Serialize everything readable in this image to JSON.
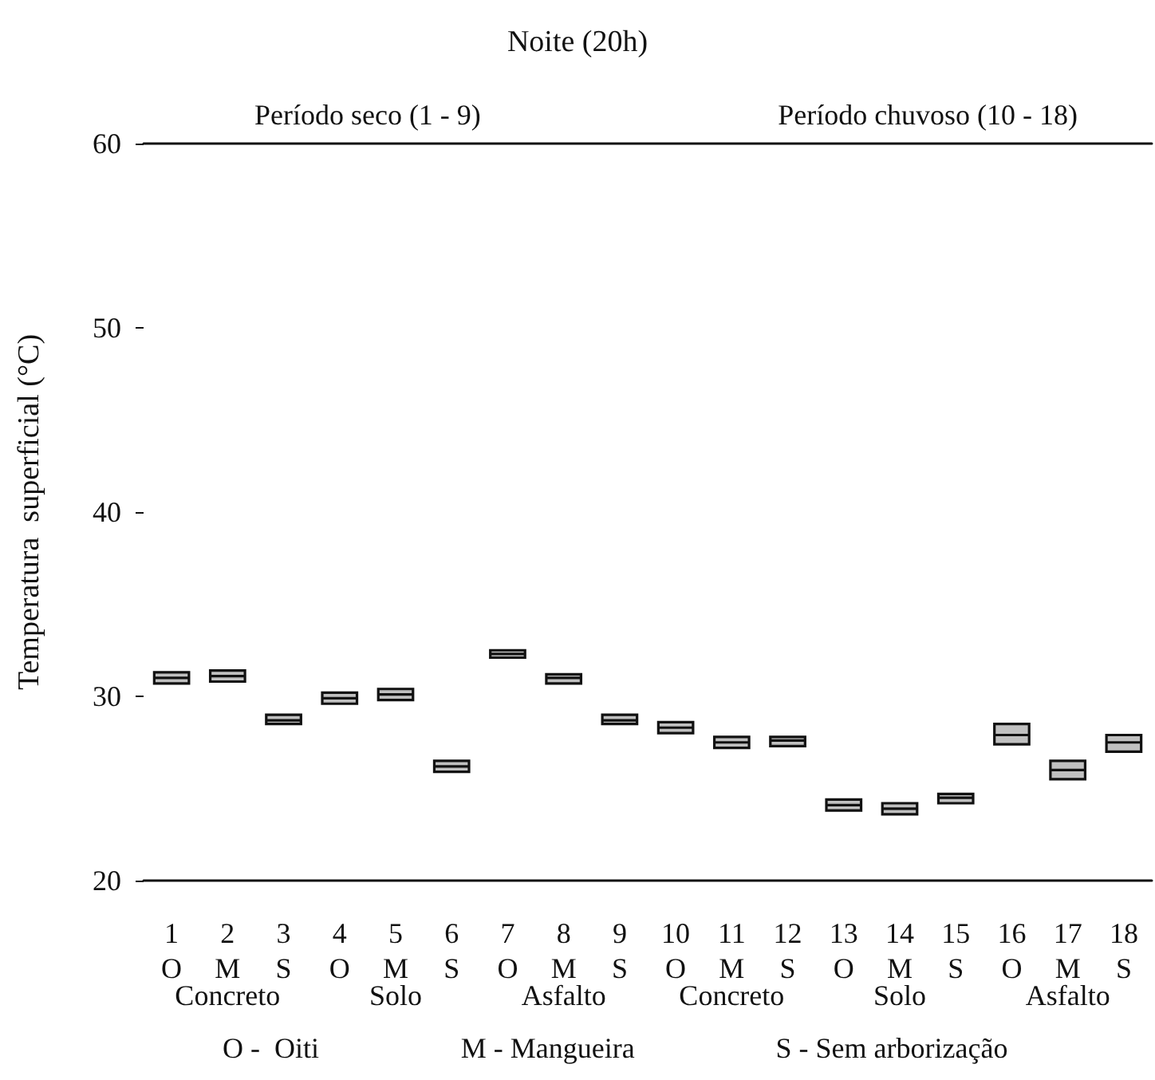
{
  "chart_data": {
    "type": "box",
    "title": "Noite (20h)",
    "ylabel": "Temperatura  superficial (°C)",
    "categories": [
      "1\nO",
      "2\nM",
      "3\nS",
      "4\nO",
      "5\nM",
      "6\nS",
      "7\nO",
      "8\nM",
      "9\nS",
      "10\nO",
      "11\nM",
      "12\nS",
      "13\nO",
      "14\nM",
      "15\nS",
      "16\nO",
      "17\nM",
      "18\nS"
    ],
    "boxes": [
      {
        "low": 30.7,
        "q1": 30.7,
        "median": 31.0,
        "q3": 31.3,
        "high": 31.3
      },
      {
        "low": 30.8,
        "q1": 30.8,
        "median": 31.1,
        "q3": 31.4,
        "high": 31.4
      },
      {
        "low": 28.5,
        "q1": 28.5,
        "median": 28.7,
        "q3": 29.0,
        "high": 29.0
      },
      {
        "low": 29.6,
        "q1": 29.6,
        "median": 29.9,
        "q3": 30.2,
        "high": 30.2
      },
      {
        "low": 29.8,
        "q1": 29.8,
        "median": 30.1,
        "q3": 30.4,
        "high": 30.4
      },
      {
        "low": 25.9,
        "q1": 25.9,
        "median": 26.2,
        "q3": 26.5,
        "high": 26.5
      },
      {
        "low": 32.1,
        "q1": 32.1,
        "median": 32.3,
        "q3": 32.5,
        "high": 32.5
      },
      {
        "low": 30.7,
        "q1": 30.7,
        "median": 31.0,
        "q3": 31.2,
        "high": 31.2
      },
      {
        "low": 28.5,
        "q1": 28.5,
        "median": 28.7,
        "q3": 29.0,
        "high": 29.0
      },
      {
        "low": 28.0,
        "q1": 28.0,
        "median": 28.3,
        "q3": 28.6,
        "high": 28.6
      },
      {
        "low": 27.2,
        "q1": 27.2,
        "median": 27.5,
        "q3": 27.8,
        "high": 27.8
      },
      {
        "low": 27.3,
        "q1": 27.3,
        "median": 27.6,
        "q3": 27.8,
        "high": 27.8
      },
      {
        "low": 23.8,
        "q1": 23.8,
        "median": 24.1,
        "q3": 24.4,
        "high": 24.4
      },
      {
        "low": 23.6,
        "q1": 23.6,
        "median": 23.9,
        "q3": 24.2,
        "high": 24.2
      },
      {
        "low": 24.2,
        "q1": 24.2,
        "median": 24.5,
        "q3": 24.7,
        "high": 24.7
      },
      {
        "low": 27.4,
        "q1": 27.4,
        "median": 27.9,
        "q3": 28.5,
        "high": 28.5
      },
      {
        "low": 25.5,
        "q1": 25.5,
        "median": 26.0,
        "q3": 26.5,
        "high": 26.5
      },
      {
        "low": 27.0,
        "q1": 27.0,
        "median": 27.5,
        "q3": 27.9,
        "high": 27.9
      }
    ],
    "color": "#c0c0c0",
    "ylim": [
      20,
      60
    ],
    "yticks": [
      20,
      30,
      40,
      50,
      60
    ],
    "grid": false,
    "annotations": [
      "Período seco (1 - 9)",
      "Período chuvoso (10 - 18)",
      "Concreto",
      "Solo",
      "Asfalto",
      "Concreto",
      "Solo",
      "Asfalto",
      "O -  Oiti",
      "M - Mangueira",
      "S - Sem arborização"
    ]
  }
}
